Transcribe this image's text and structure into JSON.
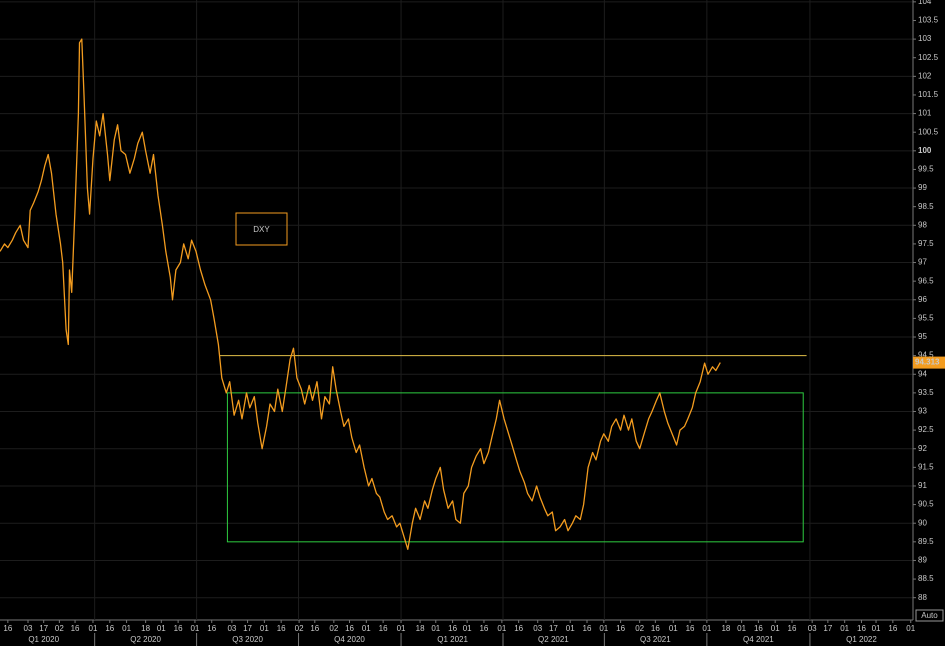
{
  "chart_data": {
    "type": "line",
    "scale_mode": "Auto",
    "series": [
      {
        "name": "DXY",
        "color": "#f39c1f",
        "x": [
          0,
          4,
          7,
          11,
          14,
          18,
          21,
          25,
          27,
          30,
          34,
          37,
          40,
          43,
          46,
          50,
          54,
          56,
          59,
          61,
          62,
          64,
          67,
          70,
          71,
          73,
          75,
          78,
          80,
          83,
          86,
          89,
          92,
          96,
          98,
          102,
          105,
          108,
          112,
          116,
          120,
          123,
          127,
          130,
          134,
          137,
          141,
          145,
          148,
          152,
          154,
          157,
          161,
          164,
          168,
          171,
          175,
          179,
          183,
          188,
          191,
          195,
          198,
          202,
          205,
          209,
          213,
          216,
          220,
          223,
          227,
          230,
          234,
          238,
          241,
          245,
          248,
          252,
          255,
          259,
          262,
          265,
          269,
          272,
          276,
          279,
          283,
          287,
          290,
          294,
          297,
          300,
          304,
          307,
          311,
          314,
          318,
          321,
          325,
          329,
          332,
          336,
          339,
          343,
          346,
          350,
          354,
          357,
          361,
          364,
          368,
          371,
          375,
          379,
          382,
          386,
          389,
          393,
          396,
          400,
          404,
          407,
          411,
          414,
          418,
          421,
          425,
          429,
          432,
          436,
          439,
          443,
          446,
          450,
          454,
          457,
          461,
          464,
          468,
          471,
          475,
          479,
          482,
          486,
          489,
          493,
          496,
          500,
          504,
          507,
          511,
          514,
          518,
          521,
          525,
          529,
          532,
          536,
          539,
          543,
          546,
          550,
          554,
          557,
          561,
          564,
          568,
          571,
          575,
          579,
          582,
          586,
          589,
          593,
          596,
          600,
          604,
          607,
          611,
          614,
          618,
          621,
          625,
          629,
          632,
          636,
          639,
          643
        ],
        "values": [
          97.3,
          97.5,
          97.4,
          97.6,
          97.8,
          98.0,
          97.6,
          97.4,
          98.4,
          98.6,
          98.9,
          99.2,
          99.6,
          99.9,
          99.4,
          98.3,
          97.5,
          97.0,
          95.2,
          94.8,
          96.8,
          96.2,
          98.5,
          101.0,
          102.9,
          103.0,
          101.5,
          99.0,
          98.3,
          99.8,
          100.8,
          100.4,
          101.0,
          99.9,
          99.2,
          100.3,
          100.7,
          100.0,
          99.9,
          99.4,
          99.8,
          100.2,
          100.5,
          100.0,
          99.4,
          99.9,
          98.8,
          98.0,
          97.3,
          96.6,
          96.0,
          96.8,
          97.0,
          97.5,
          97.1,
          97.6,
          97.3,
          96.8,
          96.4,
          96.0,
          95.5,
          94.8,
          93.9,
          93.5,
          93.8,
          92.9,
          93.3,
          92.8,
          93.5,
          93.1,
          93.4,
          92.7,
          92.0,
          92.6,
          93.2,
          93.0,
          93.6,
          93.0,
          93.6,
          94.4,
          94.7,
          93.9,
          93.6,
          93.2,
          93.7,
          93.3,
          93.8,
          92.8,
          93.4,
          93.2,
          94.2,
          93.6,
          93.0,
          92.6,
          92.8,
          92.3,
          91.9,
          92.1,
          91.5,
          91.0,
          91.2,
          90.8,
          90.7,
          90.3,
          90.1,
          90.2,
          89.9,
          90.0,
          89.6,
          89.3,
          90.0,
          90.4,
          90.1,
          90.6,
          90.4,
          90.9,
          91.2,
          91.5,
          90.9,
          90.4,
          90.6,
          90.1,
          90.0,
          90.8,
          91.0,
          91.5,
          91.8,
          92.0,
          91.6,
          91.9,
          92.3,
          92.8,
          93.3,
          92.8,
          92.4,
          92.1,
          91.7,
          91.4,
          91.1,
          90.8,
          90.6,
          91.0,
          90.7,
          90.4,
          90.2,
          90.3,
          89.8,
          89.9,
          90.1,
          89.8,
          90.0,
          90.2,
          90.1,
          90.5,
          91.5,
          91.9,
          91.7,
          92.2,
          92.4,
          92.2,
          92.6,
          92.8,
          92.5,
          92.9,
          92.5,
          92.8,
          92.2,
          92.0,
          92.4,
          92.8,
          93.0,
          93.3,
          93.5,
          93.0,
          92.7,
          92.4,
          92.1,
          92.5,
          92.6,
          92.8,
          93.1,
          93.5,
          93.8,
          94.3,
          94.0,
          94.2,
          94.1,
          94.313
        ]
      }
    ],
    "xlim": [
      0,
      815
    ],
    "ylim": [
      87.75,
      104.05
    ],
    "yticks": [
      88,
      88.5,
      89,
      89.5,
      90,
      90.5,
      91,
      91.5,
      92,
      92.5,
      93,
      93.5,
      94,
      94.5,
      95,
      95.5,
      96,
      96.5,
      97,
      97.5,
      98,
      98.5,
      99,
      99.5,
      100,
      100.5,
      101,
      101.5,
      102,
      102.5,
      103,
      103.5,
      104
    ],
    "xticks": [
      {
        "value": 7,
        "label": "16"
      },
      {
        "value": 25,
        "label": "03"
      },
      {
        "value": 39,
        "label": "17"
      },
      {
        "value": 53,
        "label": "02"
      },
      {
        "value": 67,
        "label": "16"
      },
      {
        "value": 83,
        "label": "01"
      },
      {
        "value": 98,
        "label": "16"
      },
      {
        "value": 113,
        "label": "01"
      },
      {
        "value": 130,
        "label": "18"
      },
      {
        "value": 144,
        "label": "01"
      },
      {
        "value": 159,
        "label": "16"
      },
      {
        "value": 174,
        "label": "01"
      },
      {
        "value": 189,
        "label": "16"
      },
      {
        "value": 207,
        "label": "03"
      },
      {
        "value": 221,
        "label": "17"
      },
      {
        "value": 236,
        "label": "01"
      },
      {
        "value": 251,
        "label": "16"
      },
      {
        "value": 267,
        "label": "02"
      },
      {
        "value": 281,
        "label": "16"
      },
      {
        "value": 298,
        "label": "02"
      },
      {
        "value": 312,
        "label": "16"
      },
      {
        "value": 327,
        "label": "01"
      },
      {
        "value": 342,
        "label": "16"
      },
      {
        "value": 358,
        "label": "01"
      },
      {
        "value": 375,
        "label": "18"
      },
      {
        "value": 389,
        "label": "01"
      },
      {
        "value": 404,
        "label": "16"
      },
      {
        "value": 417,
        "label": "01"
      },
      {
        "value": 432,
        "label": "16"
      },
      {
        "value": 448,
        "label": "01"
      },
      {
        "value": 463,
        "label": "16"
      },
      {
        "value": 480,
        "label": "03"
      },
      {
        "value": 494,
        "label": "17"
      },
      {
        "value": 509,
        "label": "01"
      },
      {
        "value": 524,
        "label": "16"
      },
      {
        "value": 539,
        "label": "01"
      },
      {
        "value": 554,
        "label": "16"
      },
      {
        "value": 571,
        "label": "02"
      },
      {
        "value": 585,
        "label": "16"
      },
      {
        "value": 601,
        "label": "01"
      },
      {
        "value": 616,
        "label": "16"
      },
      {
        "value": 631,
        "label": "01"
      },
      {
        "value": 648,
        "label": "18"
      },
      {
        "value": 662,
        "label": "01"
      },
      {
        "value": 677,
        "label": "16"
      },
      {
        "value": 692,
        "label": "01"
      },
      {
        "value": 707,
        "label": "16"
      },
      {
        "value": 725,
        "label": "03"
      },
      {
        "value": 739,
        "label": "17"
      },
      {
        "value": 754,
        "label": "01"
      },
      {
        "value": 769,
        "label": "16"
      },
      {
        "value": 782,
        "label": "01"
      },
      {
        "value": 797,
        "label": "16"
      },
      {
        "value": 813,
        "label": "01"
      }
    ],
    "quarters": [
      {
        "value": 39,
        "label": "Q1 2020"
      },
      {
        "value": 130,
        "label": "Q2 2020"
      },
      {
        "value": 221,
        "label": "Q3 2020"
      },
      {
        "value": 312,
        "label": "Q4 2020"
      },
      {
        "value": 404,
        "label": "Q1 2021"
      },
      {
        "value": 494,
        "label": "Q2 2021"
      },
      {
        "value": 585,
        "label": "Q3 2021"
      },
      {
        "value": 677,
        "label": "Q4 2021"
      },
      {
        "value": 769,
        "label": "Q1 2022"
      }
    ],
    "hline": {
      "y": 94.5,
      "x": [
        196,
        720
      ],
      "color": "#e3c04a"
    },
    "box": {
      "x": [
        203,
        717
      ],
      "y": [
        89.5,
        93.5
      ],
      "color": "#2ecc40"
    },
    "grid": true
  }
}
